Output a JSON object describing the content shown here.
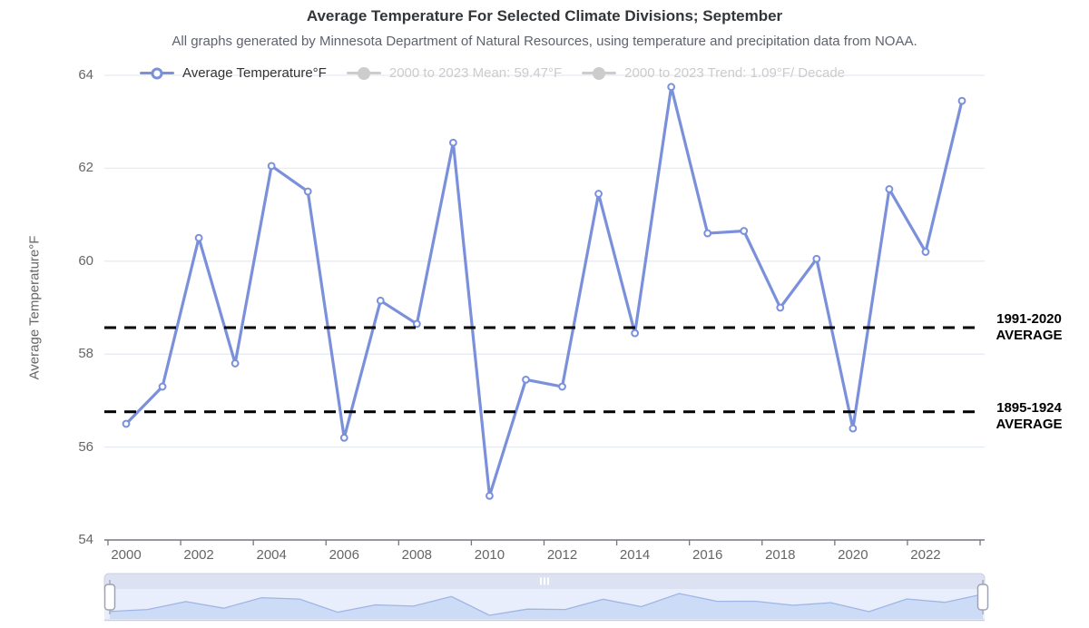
{
  "header": {
    "title": "Average Temperature For Selected Climate Divisions; September",
    "subtitle": "All graphs generated by Minnesota Department of Natural Resources, using temperature and precipitation data from NOAA."
  },
  "legend": {
    "items": [
      {
        "label": "Average Temperature°F",
        "state": "active",
        "marker": "open-circle"
      },
      {
        "label": "2000 to 2023 Mean: 59.47°F",
        "state": "disabled",
        "marker": "filled-circle"
      },
      {
        "label": "2000 to 2023 Trend: 1.09°F/ Decade",
        "state": "disabled",
        "marker": "filled-circle"
      }
    ]
  },
  "chart_data": {
    "type": "line",
    "title": "Average Temperature For Selected Climate Divisions; September",
    "xlabel": "",
    "ylabel": "Average Temperature°F",
    "ylim": [
      54,
      64
    ],
    "yticks": [
      54,
      56,
      58,
      60,
      62,
      64
    ],
    "xticks": [
      2000,
      2002,
      2004,
      2006,
      2008,
      2010,
      2012,
      2014,
      2016,
      2018,
      2020,
      2022
    ],
    "grid": true,
    "legend_position": "top",
    "x": [
      2000,
      2001,
      2002,
      2003,
      2004,
      2005,
      2006,
      2007,
      2008,
      2009,
      2010,
      2011,
      2012,
      2013,
      2014,
      2015,
      2016,
      2017,
      2018,
      2019,
      2020,
      2021,
      2022,
      2023
    ],
    "series": [
      {
        "name": "Average Temperature°F",
        "values": [
          56.5,
          57.3,
          60.5,
          57.8,
          62.05,
          61.5,
          56.2,
          59.15,
          58.65,
          62.55,
          54.95,
          57.45,
          57.3,
          61.45,
          58.45,
          63.75,
          60.6,
          60.65,
          59.0,
          60.05,
          56.4,
          61.55,
          60.2,
          63.45
        ]
      }
    ],
    "hidden_series": [
      {
        "name": "2000 to 2023 Mean: 59.47°F"
      },
      {
        "name": "2000 to 2023 Trend: 1.09°F/ Decade"
      }
    ],
    "reference_lines": [
      {
        "label": "1991-2020 AVERAGE",
        "value": 58.57,
        "style": "dashed-black"
      },
      {
        "label": "1895-1924 AVERAGE",
        "value": 56.76,
        "style": "dashed-black"
      }
    ]
  },
  "annotations": {
    "avg_1991_2020": {
      "line1": "1991-2020",
      "line2": "AVERAGE"
    },
    "avg_1895_1924": {
      "line1": "1895-1924",
      "line2": "AVERAGE"
    }
  },
  "colors": {
    "series_blue": "#7b90db",
    "grid": "#e7ebf3",
    "axis_line": "#76767e",
    "text_muted": "#666666",
    "title_text": "#333639",
    "disabled_legend": "#cccccc",
    "dashed_black": "#000000",
    "nav_track": "#dce2f1",
    "nav_bg": "#e8eefb",
    "nav_area_fill": "#ccdbf6",
    "nav_area_line": "#9fb5e5",
    "nav_border": "#c9d0e2",
    "handle_border": "#9da3b0"
  }
}
